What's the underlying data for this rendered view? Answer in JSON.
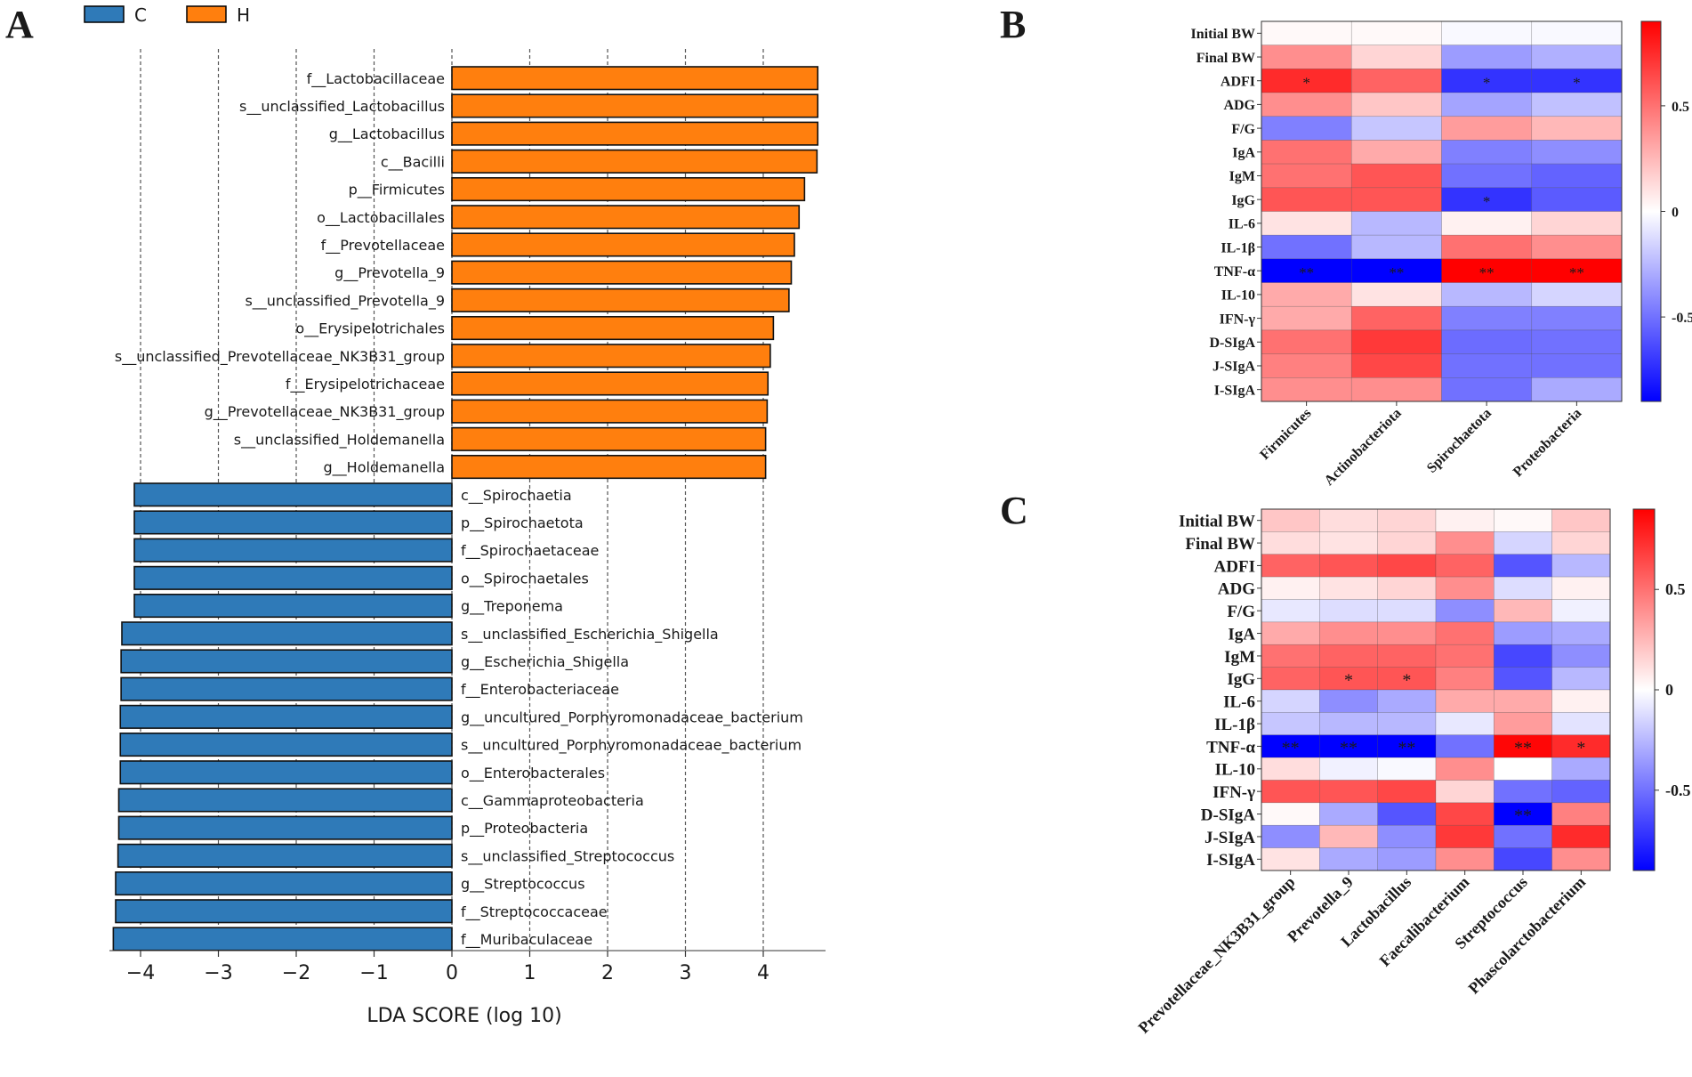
{
  "chart_data": [
    {
      "panel": "A",
      "type": "bar",
      "orientation": "horizontal",
      "legend": [
        {
          "name": "C",
          "color": "#2f7ab8"
        },
        {
          "name": "H",
          "color": "#ff7f0e"
        }
      ],
      "xlabel": "LDA SCORE (log 10)",
      "xlim": [
        -4.4,
        4.8
      ],
      "xticks": [
        "−4",
        "−3",
        "−2",
        "−1",
        "0",
        "1",
        "2",
        "3",
        "4"
      ],
      "xtick_values": [
        -4,
        -3,
        -2,
        -1,
        0,
        1,
        2,
        3,
        4
      ],
      "categories": [
        "f__Lactobacillaceae",
        "s__unclassified_Lactobacillus",
        "g__Lactobacillus",
        "c__Bacilli",
        "p__Firmicutes",
        "o__Lactobacillales",
        "f__Prevotellaceae",
        "g__Prevotella_9",
        "s__unclassified_Prevotella_9",
        "o__Erysipelotrichales",
        "s__unclassified_Prevotellaceae_NK3B31_group",
        "f__Erysipelotrichaceae",
        "g__Prevotellaceae_NK3B31_group",
        "s__unclassified_Holdemanella",
        "g__Holdemanella",
        "c__Spirochaetia",
        "p__Spirochaetota",
        "f__Spirochaetaceae",
        "o__Spirochaetales",
        "g__Treponema",
        "s__unclassified_Escherichia_Shigella",
        "g__Escherichia_Shigella",
        "f__Enterobacteriaceae",
        "g__uncultured_Porphyromonadaceae_bacterium",
        "s__uncultured_Porphyromonadaceae_bacterium",
        "o__Enterobacterales",
        "c__Gammaproteobacteria",
        "p__Proteobacteria",
        "s__unclassified_Streptococcus",
        "g__Streptococcus",
        "f__Streptococcaceae",
        "f__Muribaculaceae"
      ],
      "values": [
        4.7,
        4.7,
        4.7,
        4.69,
        4.53,
        4.46,
        4.4,
        4.36,
        4.33,
        4.13,
        4.09,
        4.06,
        4.05,
        4.03,
        4.03,
        -4.08,
        -4.08,
        -4.08,
        -4.08,
        -4.08,
        -4.24,
        -4.25,
        -4.25,
        -4.26,
        -4.26,
        -4.26,
        -4.28,
        -4.28,
        -4.29,
        -4.32,
        -4.32,
        -4.35
      ],
      "groups": [
        "H",
        "H",
        "H",
        "H",
        "H",
        "H",
        "H",
        "H",
        "H",
        "H",
        "H",
        "H",
        "H",
        "H",
        "H",
        "C",
        "C",
        "C",
        "C",
        "C",
        "C",
        "C",
        "C",
        "C",
        "C",
        "C",
        "C",
        "C",
        "C",
        "C",
        "C",
        "C"
      ]
    },
    {
      "panel": "B",
      "type": "heatmap",
      "rows": [
        "Initial BW",
        "Final BW",
        "ADFI",
        "ADG",
        "F/G",
        "IgA",
        "IgM",
        "IgG",
        "IL-6",
        "IL-1β",
        "TNF-α",
        "IL-10",
        "IFN-γ",
        "D-SIgA",
        "J-SIgA",
        "I-SIgA"
      ],
      "columns": [
        "Firmicutes",
        "Actinobacteriota",
        "Spirochaetota",
        "Proteobacteria"
      ],
      "values": [
        [
          0.02,
          0.02,
          -0.02,
          -0.02
        ],
        [
          0.4,
          0.15,
          -0.35,
          -0.28
        ],
        [
          0.75,
          0.55,
          -0.72,
          -0.72
        ],
        [
          0.4,
          0.2,
          -0.32,
          -0.22
        ],
        [
          -0.45,
          -0.2,
          0.35,
          0.25
        ],
        [
          0.5,
          0.3,
          -0.45,
          -0.4
        ],
        [
          0.5,
          0.6,
          -0.5,
          -0.55
        ],
        [
          0.6,
          0.6,
          -0.72,
          -0.58
        ],
        [
          0.1,
          -0.25,
          0.05,
          0.15
        ],
        [
          -0.5,
          -0.25,
          0.5,
          0.4
        ],
        [
          -0.92,
          -0.92,
          0.92,
          0.92
        ],
        [
          0.3,
          0.1,
          -0.25,
          -0.15
        ],
        [
          0.3,
          0.55,
          -0.45,
          -0.45
        ],
        [
          0.5,
          0.7,
          -0.52,
          -0.5
        ],
        [
          0.45,
          0.65,
          -0.5,
          -0.5
        ],
        [
          0.4,
          0.4,
          -0.5,
          -0.3
        ]
      ],
      "significance": [
        [
          "",
          "",
          "",
          ""
        ],
        [
          "",
          "",
          "",
          ""
        ],
        [
          "*",
          "",
          "*",
          "*"
        ],
        [
          "",
          "",
          "",
          ""
        ],
        [
          "",
          "",
          "",
          ""
        ],
        [
          "",
          "",
          "",
          ""
        ],
        [
          "",
          "",
          "",
          ""
        ],
        [
          "",
          "",
          "*",
          ""
        ],
        [
          "",
          "",
          "",
          ""
        ],
        [
          "",
          "",
          "",
          ""
        ],
        [
          "**",
          "**",
          "**",
          "**"
        ],
        [
          "",
          "",
          "",
          ""
        ],
        [
          "",
          "",
          "",
          ""
        ],
        [
          "",
          "",
          "",
          ""
        ],
        [
          "",
          "",
          "",
          ""
        ],
        [
          "",
          "",
          "",
          ""
        ]
      ],
      "colorbar": {
        "min": -0.9,
        "max": 0.9,
        "ticks": [
          0.5,
          0,
          -0.5
        ],
        "tick_labels": [
          "0.5",
          "0",
          "-0.5"
        ],
        "colors": [
          "#0000ff",
          "#ffffff",
          "#ff0000"
        ]
      }
    },
    {
      "panel": "C",
      "type": "heatmap",
      "rows": [
        "Initial BW",
        "Final BW",
        "ADFI",
        "ADG",
        "F/G",
        "IgA",
        "IgM",
        "IgG",
        "IL-6",
        "IL-1β",
        "TNF-α",
        "IL-10",
        "IFN-γ",
        "D-SIgA",
        "J-SIgA",
        "I-SIgA"
      ],
      "columns": [
        "Prevotellaceae_NK3B31_group",
        "Prevotella_9",
        "Lactobacillus",
        "Faecalibacterium",
        "Streptococcus",
        "Phascolarctobacterium"
      ],
      "values": [
        [
          0.2,
          0.12,
          0.15,
          0.05,
          0.02,
          0.2
        ],
        [
          0.12,
          0.1,
          0.15,
          0.4,
          -0.15,
          0.15
        ],
        [
          0.55,
          0.6,
          0.65,
          0.55,
          -0.6,
          -0.25
        ],
        [
          0.05,
          0.1,
          0.15,
          0.4,
          -0.12,
          0.05
        ],
        [
          -0.08,
          -0.12,
          -0.12,
          -0.4,
          0.25,
          -0.05
        ],
        [
          0.3,
          0.4,
          0.4,
          0.5,
          -0.35,
          -0.3
        ],
        [
          0.5,
          0.55,
          0.55,
          0.5,
          -0.65,
          -0.4
        ],
        [
          0.55,
          0.6,
          0.6,
          0.45,
          -0.6,
          -0.25
        ],
        [
          -0.15,
          -0.4,
          -0.3,
          0.3,
          0.3,
          0.05
        ],
        [
          -0.2,
          -0.25,
          -0.25,
          -0.08,
          0.35,
          -0.1
        ],
        [
          -0.92,
          -0.92,
          -0.92,
          -0.5,
          0.88,
          0.75
        ],
        [
          0.12,
          -0.05,
          -0.02,
          0.4,
          0.0,
          -0.3
        ],
        [
          0.6,
          0.6,
          0.65,
          0.15,
          -0.5,
          -0.55
        ],
        [
          0.02,
          -0.3,
          -0.6,
          0.65,
          -0.92,
          0.45
        ],
        [
          -0.4,
          0.25,
          -0.4,
          0.7,
          -0.5,
          0.75
        ],
        [
          0.1,
          -0.3,
          -0.35,
          0.4,
          -0.65,
          0.4
        ]
      ],
      "significance": [
        [
          "",
          "",
          "",
          "",
          "",
          ""
        ],
        [
          "",
          "",
          "",
          "",
          "",
          ""
        ],
        [
          "",
          "",
          "",
          "",
          "",
          ""
        ],
        [
          "",
          "",
          "",
          "",
          "",
          ""
        ],
        [
          "",
          "",
          "",
          "",
          "",
          ""
        ],
        [
          "",
          "",
          "",
          "",
          "",
          ""
        ],
        [
          "",
          "",
          "",
          "",
          "",
          ""
        ],
        [
          "",
          "*",
          "*",
          "",
          "",
          ""
        ],
        [
          "",
          "",
          "",
          "",
          "",
          ""
        ],
        [
          "",
          "",
          "",
          "",
          "",
          ""
        ],
        [
          "**",
          "**",
          "**",
          "",
          "**",
          "*"
        ],
        [
          "",
          "",
          "",
          "",
          "",
          ""
        ],
        [
          "",
          "",
          "",
          "",
          "",
          ""
        ],
        [
          "",
          "",
          "",
          "",
          "**",
          ""
        ],
        [
          "",
          "",
          "",
          "",
          "",
          ""
        ],
        [
          "",
          "",
          "",
          "",
          "",
          ""
        ]
      ],
      "colorbar": {
        "min": -0.9,
        "max": 0.9,
        "ticks": [
          0.5,
          0,
          -0.5
        ],
        "tick_labels": [
          "0.5",
          "0",
          "-0.5"
        ],
        "colors": [
          "#0000ff",
          "#ffffff",
          "#ff0000"
        ]
      }
    }
  ]
}
